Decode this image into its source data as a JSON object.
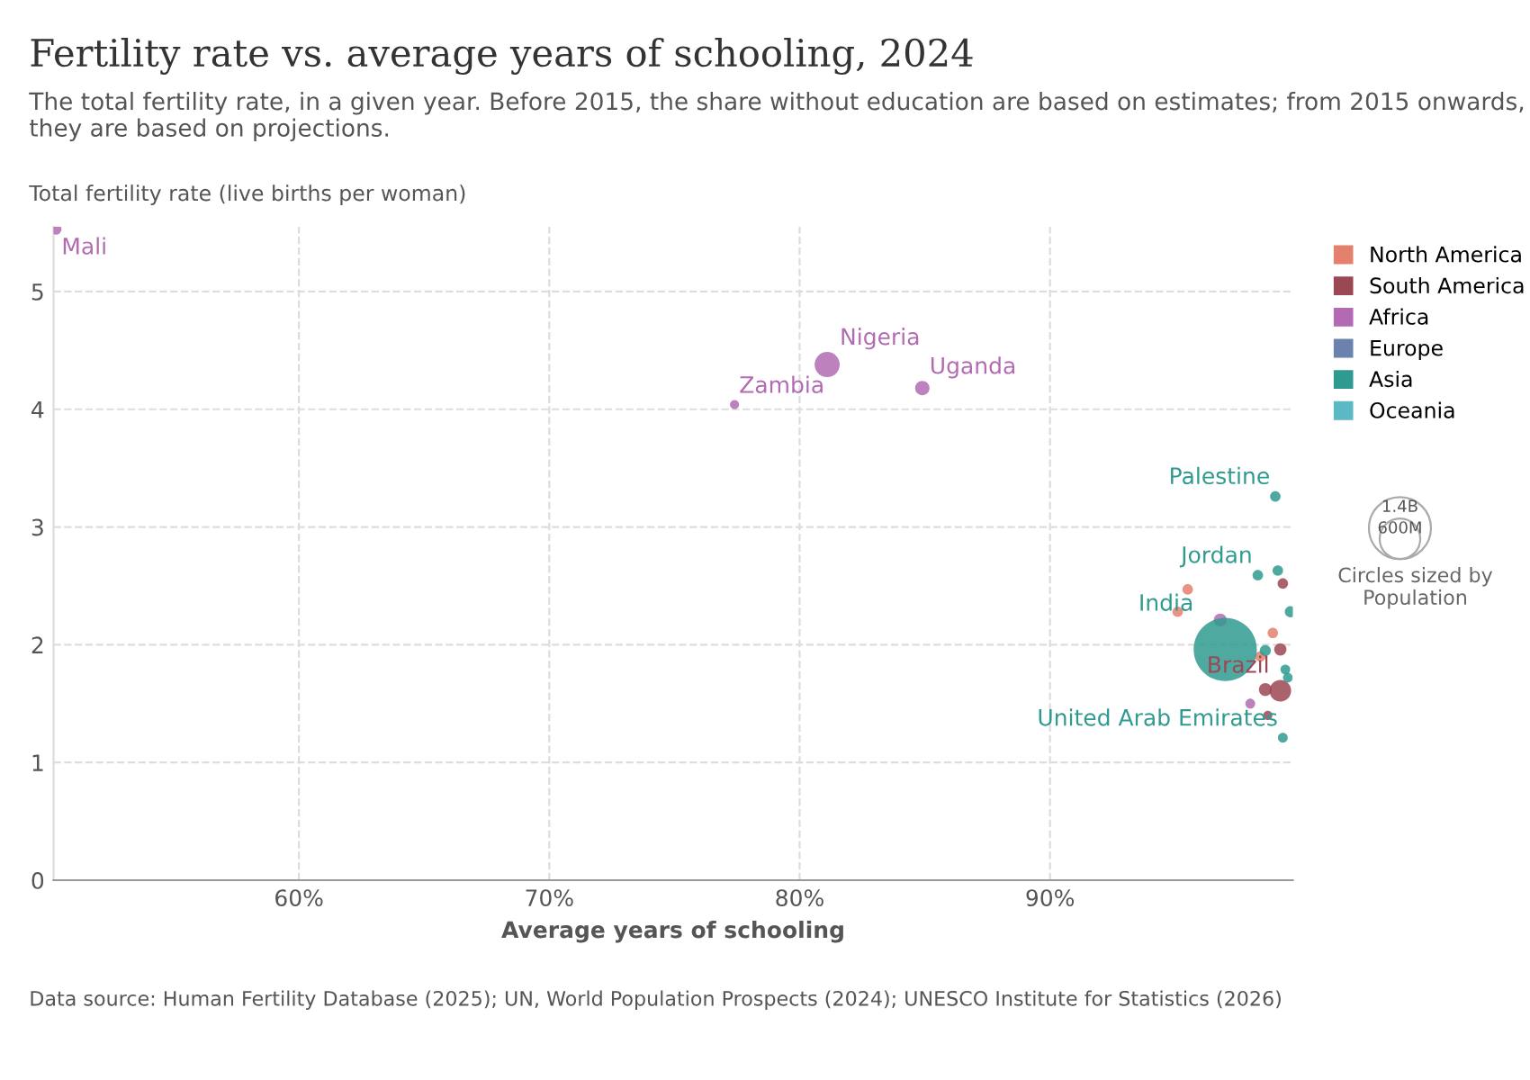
{
  "chart_data": {
    "type": "bubble",
    "title": "Fertility rate vs. average years of schooling, 2024",
    "subtitle": "The total fertility rate, in a given year. Before 2015, the share without education are based on estimates; from 2015 onwards, they are based on projections.",
    "xlabel": "Average years of schooling",
    "ylabel": "Total fertility rate (live births per woman)",
    "xlim": [
      50.2,
      99.7
    ],
    "ylim": [
      0,
      5.55
    ],
    "xticks": [
      {
        "value": 60,
        "label": "60%"
      },
      {
        "value": 70,
        "label": "70%"
      },
      {
        "value": 80,
        "label": "80%"
      },
      {
        "value": 90,
        "label": "90%"
      }
    ],
    "yticks": [
      0,
      1,
      2,
      3,
      4,
      5
    ],
    "grid": true,
    "legend": "right",
    "line_style": "dashed",
    "size_legend": [
      {
        "value": 600,
        "label": "600M"
      },
      {
        "value": 1400,
        "label": "1.4B"
      }
    ],
    "series": [
      {
        "name": "North America",
        "color": "#e4806e",
        "x": [
          95.5,
          95.1,
          98.9,
          98.4
        ],
        "values": [
          2.47,
          2.28,
          2.1,
          1.9
        ],
        "sizes": [
          40,
          40,
          40,
          40
        ],
        "value_labels": [
          null,
          null,
          null,
          null
        ]
      },
      {
        "name": "South America",
        "color": "#9b4754",
        "x": [
          99.3,
          99.2,
          99.2,
          98.6,
          98.7
        ],
        "values": [
          2.52,
          1.96,
          1.61,
          1.62,
          1.4
        ],
        "sizes": [
          40,
          55,
          170,
          60,
          30
        ],
        "value_labels": [
          null,
          null,
          "Brazil",
          null,
          null
        ]
      },
      {
        "name": "Africa",
        "color": "#b26bb2",
        "x": [
          50.3,
          77.4,
          81.1,
          84.9,
          96.8,
          98.0
        ],
        "values": [
          5.53,
          4.04,
          4.38,
          4.18,
          2.21,
          1.5
        ],
        "sizes": [
          43,
          30,
          230,
          75,
          60,
          35
        ],
        "value_labels": [
          "Mali",
          "Zambia",
          "Nigeria",
          "Uganda",
          null,
          null
        ]
      },
      {
        "name": "Europe",
        "color": "#6b82ae"
      },
      {
        "name": "Asia",
        "color": "#2f9a90",
        "x": [
          99.0,
          98.3,
          99.1,
          97.0,
          99.6,
          98.6,
          99.4,
          99.5,
          99.3
        ],
        "values": [
          3.26,
          2.59,
          2.63,
          1.96,
          2.28,
          1.95,
          1.79,
          1.72,
          1.21
        ],
        "sizes": [
          40,
          40,
          40,
          1450,
          45,
          45,
          35,
          35,
          35
        ],
        "value_labels": [
          "Palestine",
          "Jordan",
          null,
          "India",
          null,
          null,
          null,
          null,
          "United Arab Emirates"
        ]
      },
      {
        "name": "Oceania",
        "color": "#5cb8c4"
      }
    ],
    "annotations": [
      "Circles sized by Population",
      "Data source: Human Fertility Database (2025); UN, World Population Prospects (2024); UNESCO Institute for Statistics (2026)"
    ]
  }
}
